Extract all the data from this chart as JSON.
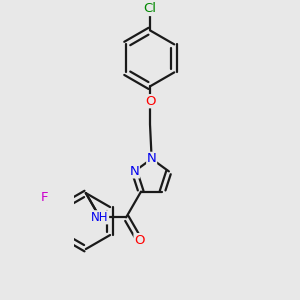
{
  "background_color": "#e8e8e8",
  "bond_color": "#1a1a1a",
  "heteroatom_colors": {
    "O": "#ff0000",
    "N": "#0000ee",
    "F": "#cc00cc",
    "Cl": "#008800",
    "H": "#555555"
  },
  "figsize": [
    3.0,
    3.0
  ],
  "dpi": 100,
  "lw": 1.6,
  "fontsize": 9.5
}
